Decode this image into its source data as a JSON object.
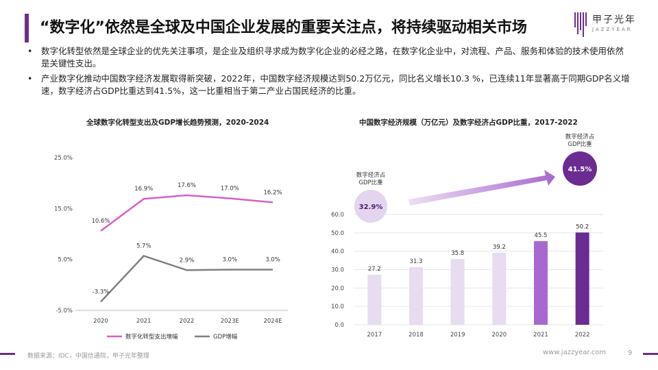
{
  "title": "“数字化”依然是全球及中国企业发展的重要关注点，将持续驱动相关市场",
  "logo": {
    "name": "甲子光年",
    "sub": "JAZZYEAR"
  },
  "bullets": [
    {
      "marker": "•",
      "text": "数字化转型依然是全球企业的优先关注事项，是企业及组织寻求成为数字化企业的必经之路，在数字化企业中，对流程、产品、服务和体验的技术使用依然是关键性支出。"
    },
    {
      "marker": "•",
      "text": "产业数字化推动中国数字经济发展取得新突破，2022年，中国数字经济规模达到50.2万亿元，同比名义增长10.3 %，已连续11年显著高于同期GDP名义增速，数字经济占GDP比重达到41.5%，这一比重相当于第二产业占国民经济的比重。"
    }
  ],
  "colors": {
    "accent": "#6a2c91",
    "pink": "#d65fc8",
    "gray": "#7f7f7f"
  },
  "chart_data": [
    {
      "type": "line",
      "title": "全球数字化转型支出及GDP增长趋势预测，2020-2024",
      "categories": [
        "2020",
        "2021",
        "2022",
        "2023E",
        "2024E"
      ],
      "series": [
        {
          "name": "数字化转型支出增幅",
          "values": [
            10.6,
            16.9,
            17.6,
            17.0,
            16.2
          ],
          "labels": [
            "10.6%",
            "16.9%",
            "17.6%",
            "17.0%",
            "16.2%"
          ],
          "color": "#d65fc8"
        },
        {
          "name": "GDP增幅",
          "values": [
            -3.3,
            5.7,
            2.9,
            3.0,
            3.0
          ],
          "labels": [
            "-3.3%",
            "5.7%",
            "2.9%",
            "3.0%",
            "3.0%"
          ],
          "color": "#7f7f7f"
        }
      ],
      "yticks": [
        "25.0%",
        "15.0%",
        "5.0%",
        "-5.0%"
      ],
      "ylim": [
        -5,
        25
      ],
      "legend": "bottom"
    },
    {
      "type": "bar",
      "title": "中国数字经济规模（万亿元）及数字经济占GDP比重，2017-2022",
      "categories": [
        "2017",
        "2018",
        "2019",
        "2020",
        "2021",
        "2022"
      ],
      "values": [
        27.2,
        31.3,
        35.8,
        39.2,
        45.5,
        50.2
      ],
      "value_labels": [
        "27.2",
        "31.3",
        "35.8",
        "39.2",
        "45.5",
        "50.2"
      ],
      "bar_colors": [
        "#e7dcf0",
        "#e7dcf0",
        "#e7dcf0",
        "#e7dcf0",
        "#a768cf",
        "#6a2c91"
      ],
      "yticks": [
        "60.0",
        "50.0",
        "40.0",
        "30.0",
        "20.0",
        "10.0",
        "0.0"
      ],
      "ylim": [
        0,
        60
      ],
      "annotations": [
        {
          "label": "数字经济占GDP比重",
          "value": "32.9%"
        },
        {
          "label": "数字经济占GDP比重",
          "value": "41.5%"
        }
      ]
    }
  ],
  "footer": {
    "source": "数据来源：IDC，中国信通院，甲子光年整理",
    "url": "www.jazzyear.com",
    "page": "9"
  }
}
